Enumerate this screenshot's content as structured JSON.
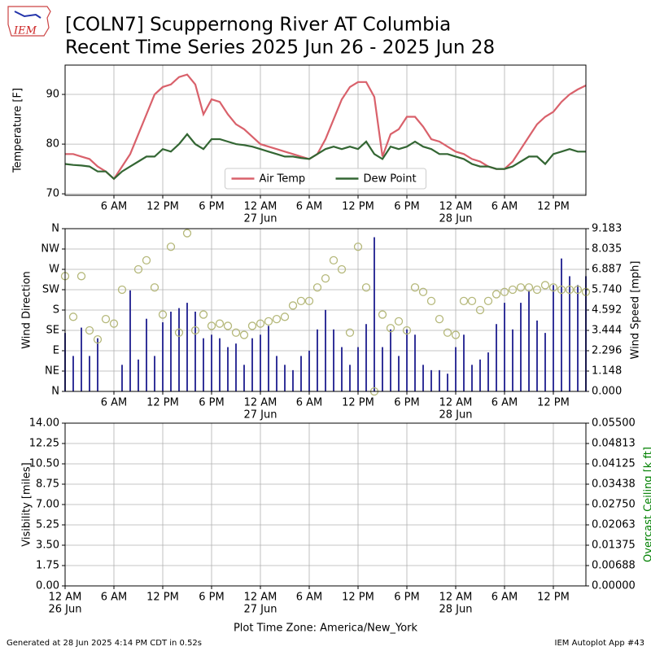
{
  "logo_text": "IEM",
  "title": "[COLN7] Scuppernong River  AT Columbia",
  "subtitle": "Recent Time Series 2025 Jun 26 - 2025 Jun 28",
  "footer_left": "Generated at 28 Jun 2025 4:14 PM CDT in 0.52s",
  "footer_right": "IEM Autoplot App #43",
  "chart_data": [
    {
      "type": "line",
      "ylabel": "Temperature [F]",
      "legend": "lower center",
      "grid": true,
      "xlim": [
        0,
        64
      ],
      "ylim": [
        69.7,
        95.9
      ],
      "yticks": [
        70,
        80,
        90
      ],
      "xticks": [
        {
          "value": 6,
          "label": "6 AM"
        },
        {
          "value": 12,
          "label": "12 PM"
        },
        {
          "value": 18,
          "label": "6 PM"
        },
        {
          "value": 24,
          "label": "12 AM"
        },
        {
          "value": 30,
          "label": "6 AM"
        },
        {
          "value": 36,
          "label": "12 PM"
        },
        {
          "value": 42,
          "label": "6 PM"
        },
        {
          "value": 48,
          "label": "12 AM"
        },
        {
          "value": 54,
          "label": "6 AM"
        },
        {
          "value": 60,
          "label": "12 PM"
        }
      ],
      "xdate_ticks": [
        {
          "value": 24,
          "label": "27 Jun"
        },
        {
          "value": 48,
          "label": "28 Jun"
        }
      ],
      "x": [
        0,
        1,
        2,
        3,
        4,
        5,
        6,
        7,
        8,
        9,
        10,
        11,
        12,
        13,
        14,
        15,
        16,
        17,
        18,
        19,
        20,
        21,
        22,
        23,
        24,
        25,
        26,
        27,
        28,
        29,
        30,
        31,
        32,
        33,
        34,
        35,
        36,
        37,
        38,
        39,
        40,
        41,
        42,
        43,
        44,
        45,
        46,
        47,
        48,
        49,
        50,
        51,
        52,
        53,
        54,
        55,
        56,
        57,
        58,
        59,
        60,
        61,
        62,
        63,
        64
      ],
      "series": [
        {
          "name": "Air Temp",
          "color": "#d9616b",
          "values": [
            78,
            78,
            77.5,
            77,
            75.5,
            74.5,
            73,
            75.5,
            78,
            82,
            86,
            90,
            91.5,
            92,
            93.5,
            94,
            92,
            86,
            89,
            88.5,
            86,
            84,
            83,
            81.5,
            80,
            79.5,
            79,
            78.5,
            78,
            77.5,
            77,
            78,
            81,
            85,
            89,
            91.5,
            92.5,
            92.5,
            89.5,
            77.5,
            82,
            83,
            85.5,
            85.5,
            83.5,
            81,
            80.5,
            79.5,
            78.5,
            78,
            77,
            76.5,
            75.5,
            75,
            75,
            76.5,
            79,
            81.5,
            84,
            85.5,
            86.5,
            88.5,
            90,
            91,
            91.8
          ]
        },
        {
          "name": "Dew Point",
          "color": "#336633",
          "values": [
            76,
            75.8,
            75.7,
            75.5,
            74.5,
            74.5,
            73,
            74.5,
            75.5,
            76.5,
            77.5,
            77.5,
            79,
            78.5,
            80,
            82,
            80,
            79,
            81,
            81,
            80.5,
            80,
            79.8,
            79.5,
            79,
            78.5,
            78,
            77.5,
            77.5,
            77.2,
            77,
            78,
            79,
            79.5,
            79,
            79.5,
            79,
            80.5,
            78,
            77,
            79.5,
            79,
            79.5,
            80.5,
            79.5,
            79,
            78,
            78,
            77.5,
            77,
            76,
            75.5,
            75.5,
            75,
            75,
            75.5,
            76.5,
            77.5,
            77.5,
            76,
            78,
            78.5,
            79,
            78.5,
            78.5
          ]
        }
      ]
    },
    {
      "type": "mixed",
      "ylabel": "Wind Direction",
      "y2label": "Wind Speed [mph]",
      "grid": true,
      "xlim": [
        0,
        64
      ],
      "ylim": [
        0,
        360
      ],
      "yticks": [
        {
          "value": 0,
          "label": "N"
        },
        {
          "value": 45,
          "label": "NE"
        },
        {
          "value": 90,
          "label": "E"
        },
        {
          "value": 135,
          "label": "SE"
        },
        {
          "value": 180,
          "label": "S"
        },
        {
          "value": 225,
          "label": "SW"
        },
        {
          "value": 270,
          "label": "W"
        },
        {
          "value": 315,
          "label": "NW"
        },
        {
          "value": 360,
          "label": "N"
        }
      ],
      "y2lim": [
        0,
        9.183
      ],
      "y2ticks": [
        {
          "value": 0,
          "label": "0.000"
        },
        1.148,
        2.296,
        3.444,
        4.592,
        {
          "value": 5.74,
          "label": "5.740"
        },
        6.887,
        8.035,
        9.183
      ],
      "xticks": [
        {
          "value": 6,
          "label": "6 AM"
        },
        {
          "value": 12,
          "label": "12 PM"
        },
        {
          "value": 18,
          "label": "6 PM"
        },
        {
          "value": 24,
          "label": "12 AM"
        },
        {
          "value": 30,
          "label": "6 AM"
        },
        {
          "value": 36,
          "label": "12 PM"
        },
        {
          "value": 42,
          "label": "6 PM"
        },
        {
          "value": 48,
          "label": "12 AM"
        },
        {
          "value": 54,
          "label": "6 AM"
        },
        {
          "value": 60,
          "label": "12 PM"
        }
      ],
      "xdate_ticks": [
        {
          "value": 24,
          "label": "27 Jun"
        },
        {
          "value": 48,
          "label": "28 Jun"
        }
      ],
      "x": [
        0,
        1,
        2,
        3,
        4,
        5,
        6,
        7,
        8,
        9,
        10,
        11,
        12,
        13,
        14,
        15,
        16,
        17,
        18,
        19,
        20,
        21,
        22,
        23,
        24,
        25,
        26,
        27,
        28,
        29,
        30,
        31,
        32,
        33,
        34,
        35,
        36,
        37,
        38,
        39,
        40,
        41,
        42,
        43,
        44,
        45,
        46,
        47,
        48,
        49,
        50,
        51,
        52,
        53,
        54,
        55,
        56,
        57,
        58,
        59,
        60,
        61,
        62,
        63,
        64
      ],
      "series": [
        {
          "kind": "bar",
          "axis": "y2",
          "color": "#333399",
          "values": [
            3.3,
            2,
            3.6,
            2,
            3,
            0,
            0,
            1.5,
            5.7,
            1.8,
            4.1,
            2,
            3.9,
            4.5,
            4.7,
            5,
            4.5,
            3,
            3.2,
            3,
            2.5,
            2.7,
            1.5,
            3,
            3.2,
            3.7,
            2,
            1.5,
            1.2,
            2,
            2.3,
            3.5,
            4.6,
            3.5,
            2.5,
            1.5,
            2.5,
            3.8,
            8.7,
            2.5,
            3.5,
            2,
            3.5,
            3.2,
            1.5,
            1.2,
            1.2,
            1,
            2.5,
            3.2,
            1.5,
            1.8,
            2.2,
            3.8,
            5,
            3.5,
            5,
            5.7,
            4,
            3.3,
            6,
            7.5,
            6.5,
            6,
            6.5
          ]
        },
        {
          "kind": "scatter",
          "axis": "y",
          "color": "#b5b87a",
          "values": [
            255,
            165,
            255,
            135,
            115,
            160,
            150,
            225,
            null,
            270,
            290,
            230,
            170,
            320,
            130,
            350,
            135,
            170,
            145,
            150,
            145,
            130,
            125,
            145,
            150,
            155,
            160,
            165,
            190,
            200,
            200,
            230,
            250,
            290,
            270,
            130,
            320,
            230,
            0,
            170,
            140,
            155,
            135,
            230,
            220,
            200,
            160,
            130,
            125,
            200,
            200,
            180,
            200,
            215,
            220,
            225,
            230,
            230,
            225,
            235,
            230,
            225,
            225,
            225,
            220
          ]
        }
      ]
    },
    {
      "type": "line",
      "ylabel": "Visibility [miles]",
      "y2label": "Overcast Ceiling [k ft]",
      "y2color": "#008000",
      "grid": true,
      "xlabel": "Plot Time Zone: America/New_York",
      "xlim": [
        0,
        64
      ],
      "ylim": [
        0,
        14
      ],
      "yticks": [
        {
          "value": 0,
          "label": "0.00"
        },
        {
          "value": 1.75,
          "label": "1.75"
        },
        {
          "value": 3.5,
          "label": "3.50"
        },
        {
          "value": 5.25,
          "label": "5.25"
        },
        {
          "value": 7,
          "label": "7.00"
        },
        {
          "value": 8.75,
          "label": "8.75"
        },
        {
          "value": 10.5,
          "label": "10.50"
        },
        {
          "value": 12.25,
          "label": "12.25"
        },
        {
          "value": 14,
          "label": "14.00"
        }
      ],
      "y2lim": [
        0,
        0.055
      ],
      "y2ticks": [
        {
          "value": 0,
          "label": "0.00000"
        },
        {
          "value": 0.006875,
          "label": "0.00688"
        },
        {
          "value": 0.01375,
          "label": "0.01375"
        },
        {
          "value": 0.020625,
          "label": "0.02063"
        },
        {
          "value": 0.0275,
          "label": "0.02750"
        },
        {
          "value": 0.034375,
          "label": "0.03438"
        },
        {
          "value": 0.04125,
          "label": "0.04125"
        },
        {
          "value": 0.048125,
          "label": "0.04813"
        },
        {
          "value": 0.055,
          "label": "0.05500"
        }
      ],
      "xticks": [
        {
          "value": 0,
          "label": "12 AM"
        },
        {
          "value": 6,
          "label": "6 AM"
        },
        {
          "value": 12,
          "label": "12 PM"
        },
        {
          "value": 18,
          "label": "6 PM"
        },
        {
          "value": 24,
          "label": "12 AM"
        },
        {
          "value": 30,
          "label": "6 AM"
        },
        {
          "value": 36,
          "label": "12 PM"
        },
        {
          "value": 42,
          "label": "6 PM"
        },
        {
          "value": 48,
          "label": "12 AM"
        },
        {
          "value": 54,
          "label": "6 AM"
        },
        {
          "value": 60,
          "label": "12 PM"
        }
      ],
      "xdate_ticks": [
        {
          "value": 0,
          "label": "26 Jun"
        },
        {
          "value": 24,
          "label": "27 Jun"
        },
        {
          "value": 48,
          "label": "28 Jun"
        }
      ]
    }
  ]
}
